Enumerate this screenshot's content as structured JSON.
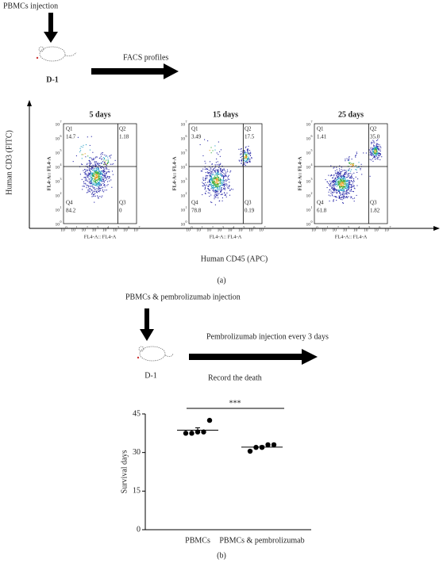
{
  "panel_a": {
    "injection": "PBMCs injection",
    "day": "D-1",
    "arrow_label": "FACS profiles",
    "y_axis_label": "Human CD3 (FITC)",
    "x_axis_label": "Human CD45 (APC)",
    "caption": "(a)",
    "tick_base": "10",
    "tick_exponents": [
      "0",
      "1",
      "2",
      "3",
      "4",
      "5",
      "6",
      "7"
    ],
    "plot_x_label": "FL4-A:: FL4-A",
    "plot_y_label": "FL4-A:: FL4-A",
    "plots": [
      {
        "title": "5 days",
        "quadrants": [
          {
            "name": "Q1",
            "value": "14.7"
          },
          {
            "name": "Q2",
            "value": "1.18"
          },
          {
            "name": "Q3",
            "value": "0"
          },
          {
            "name": "Q4",
            "value": "84.2"
          }
        ]
      },
      {
        "title": "15 days",
        "quadrants": [
          {
            "name": "Q1",
            "value": "3.49"
          },
          {
            "name": "Q2",
            "value": "17.5"
          },
          {
            "name": "Q3",
            "value": "0.19"
          },
          {
            "name": "Q4",
            "value": "78.8"
          }
        ]
      },
      {
        "title": "25 days",
        "quadrants": [
          {
            "name": "Q1",
            "value": "1.41"
          },
          {
            "name": "Q2",
            "value": "35.0"
          },
          {
            "name": "Q3",
            "value": "1.82"
          },
          {
            "name": "Q4",
            "value": "61.8"
          }
        ]
      }
    ]
  },
  "panel_b": {
    "injection": "PBMCs & pembrolizumab injection",
    "day": "D-1",
    "arrow_label": "Pembrolizumab injection every 3 days",
    "record": "Record the death",
    "caption": "(b)"
  },
  "chart_data": {
    "type": "dotplot",
    "ylabel": "Survival days",
    "categories": [
      "PBMCs",
      "PBMCs & pembrolizumab"
    ],
    "values": [
      [
        37.5,
        37.5,
        38,
        38,
        42.5
      ],
      [
        30.5,
        32,
        32,
        33,
        33
      ]
    ],
    "means": [
      38.7,
      32.1
    ],
    "errors": [
      0.9,
      0.5
    ],
    "color": "#000000",
    "ylim": [
      0,
      45
    ],
    "yticks": [
      0,
      15,
      30,
      45
    ],
    "annotation": "***"
  }
}
